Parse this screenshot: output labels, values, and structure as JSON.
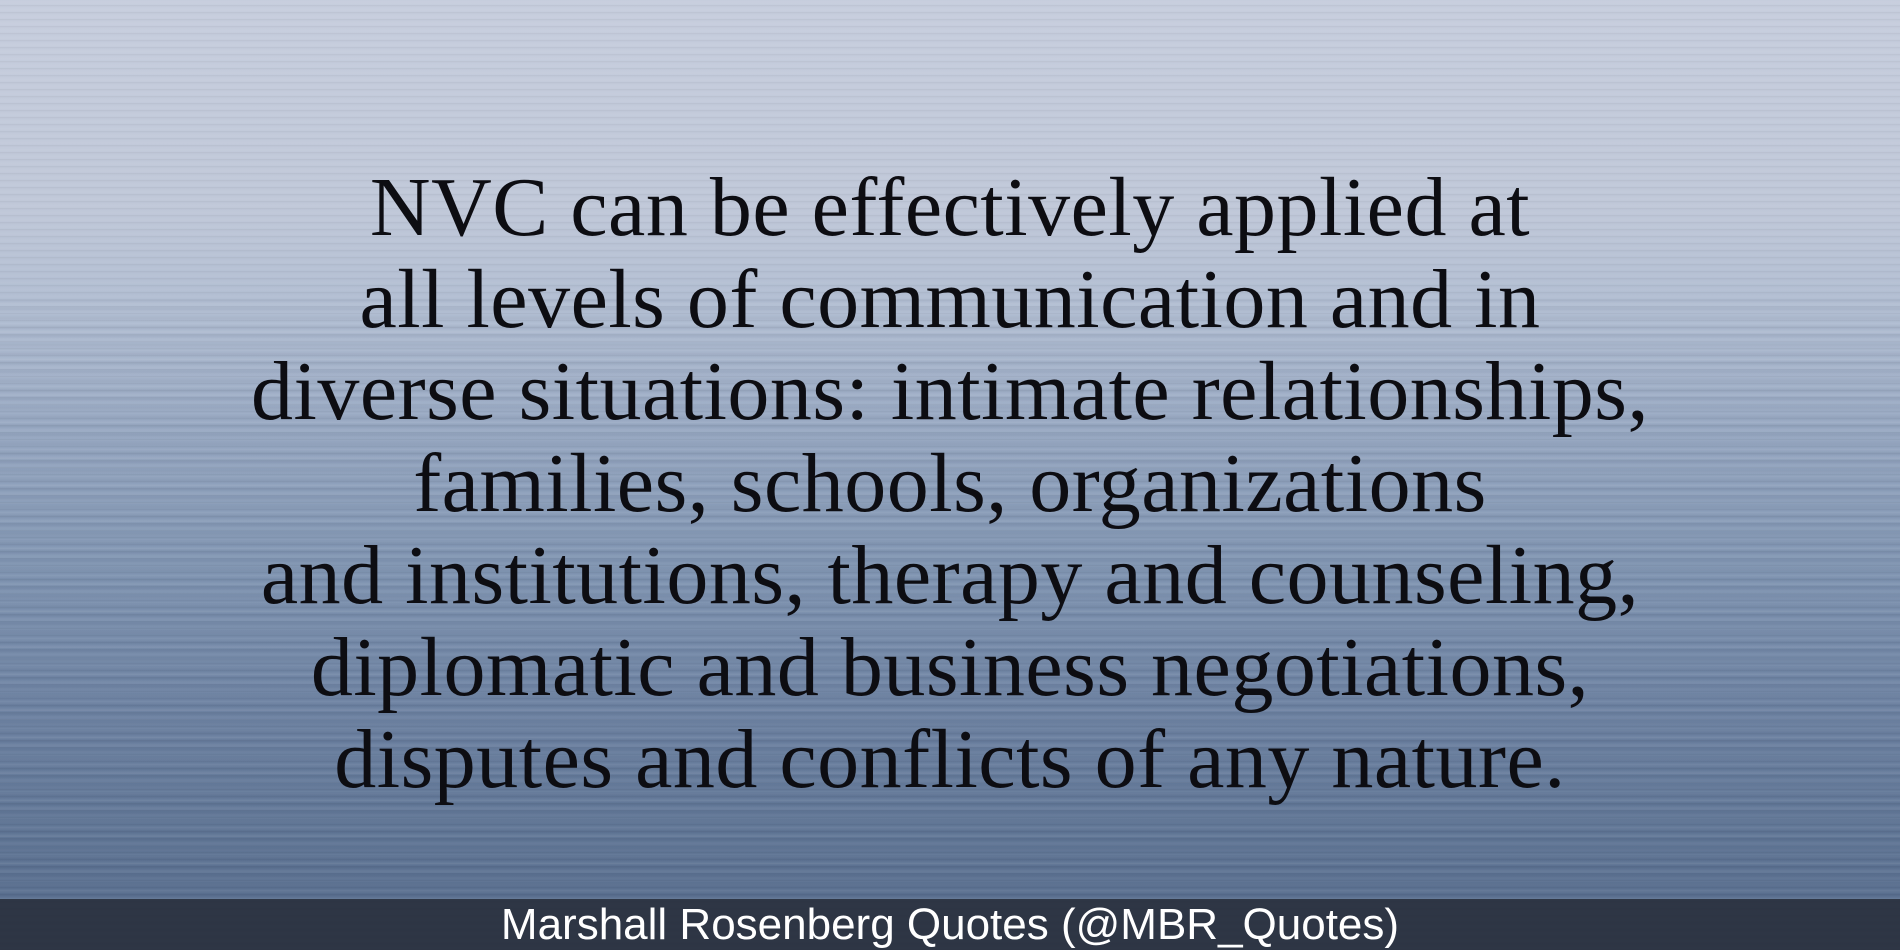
{
  "quote": {
    "lines": [
      "NVC can be effectively applied at",
      "all levels of communication and in",
      "diverse situations: intimate relationships,",
      "families, schools, organizations",
      "and institutions, therapy and counseling,",
      "diplomatic and business negotiations,",
      "disputes and conflicts of any nature."
    ]
  },
  "footer": {
    "attribution": "Marshall Rosenberg Quotes (@MBR_Quotes)"
  }
}
